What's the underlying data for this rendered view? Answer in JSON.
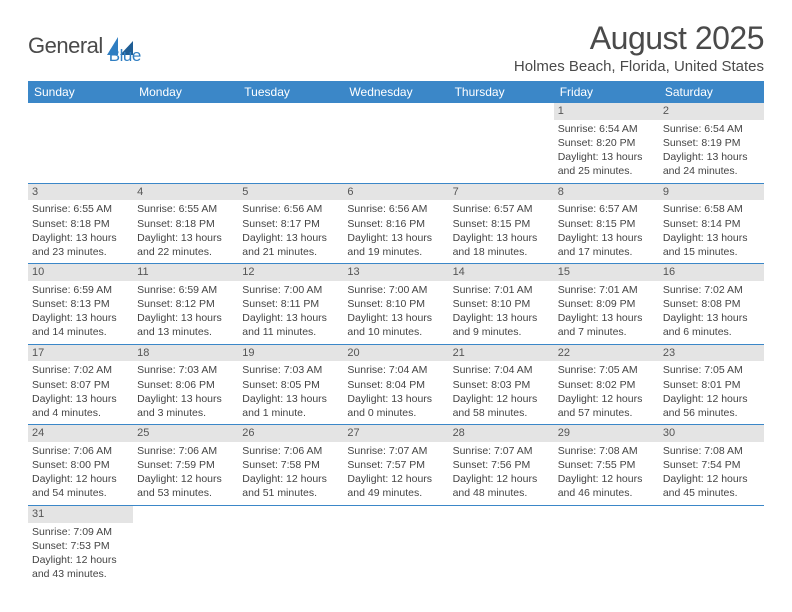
{
  "logo": {
    "text1": "General",
    "text2": "Blue"
  },
  "title": "August 2025",
  "location": "Holmes Beach, Florida, United States",
  "weekdays": [
    "Sunday",
    "Monday",
    "Tuesday",
    "Wednesday",
    "Thursday",
    "Friday",
    "Saturday"
  ],
  "colors": {
    "header_bg": "#3b87c8",
    "header_text": "#ffffff",
    "daynum_bg": "#e4e4e4",
    "border": "#3b87c8",
    "logo_blue": "#2f7ec2",
    "text": "#444444"
  },
  "weeks": [
    [
      null,
      null,
      null,
      null,
      null,
      {
        "n": "1",
        "sr": "6:54 AM",
        "ss": "8:20 PM",
        "dl": "13 hours and 25 minutes."
      },
      {
        "n": "2",
        "sr": "6:54 AM",
        "ss": "8:19 PM",
        "dl": "13 hours and 24 minutes."
      }
    ],
    [
      {
        "n": "3",
        "sr": "6:55 AM",
        "ss": "8:18 PM",
        "dl": "13 hours and 23 minutes."
      },
      {
        "n": "4",
        "sr": "6:55 AM",
        "ss": "8:18 PM",
        "dl": "13 hours and 22 minutes."
      },
      {
        "n": "5",
        "sr": "6:56 AM",
        "ss": "8:17 PM",
        "dl": "13 hours and 21 minutes."
      },
      {
        "n": "6",
        "sr": "6:56 AM",
        "ss": "8:16 PM",
        "dl": "13 hours and 19 minutes."
      },
      {
        "n": "7",
        "sr": "6:57 AM",
        "ss": "8:15 PM",
        "dl": "13 hours and 18 minutes."
      },
      {
        "n": "8",
        "sr": "6:57 AM",
        "ss": "8:15 PM",
        "dl": "13 hours and 17 minutes."
      },
      {
        "n": "9",
        "sr": "6:58 AM",
        "ss": "8:14 PM",
        "dl": "13 hours and 15 minutes."
      }
    ],
    [
      {
        "n": "10",
        "sr": "6:59 AM",
        "ss": "8:13 PM",
        "dl": "13 hours and 14 minutes."
      },
      {
        "n": "11",
        "sr": "6:59 AM",
        "ss": "8:12 PM",
        "dl": "13 hours and 13 minutes."
      },
      {
        "n": "12",
        "sr": "7:00 AM",
        "ss": "8:11 PM",
        "dl": "13 hours and 11 minutes."
      },
      {
        "n": "13",
        "sr": "7:00 AM",
        "ss": "8:10 PM",
        "dl": "13 hours and 10 minutes."
      },
      {
        "n": "14",
        "sr": "7:01 AM",
        "ss": "8:10 PM",
        "dl": "13 hours and 9 minutes."
      },
      {
        "n": "15",
        "sr": "7:01 AM",
        "ss": "8:09 PM",
        "dl": "13 hours and 7 minutes."
      },
      {
        "n": "16",
        "sr": "7:02 AM",
        "ss": "8:08 PM",
        "dl": "13 hours and 6 minutes."
      }
    ],
    [
      {
        "n": "17",
        "sr": "7:02 AM",
        "ss": "8:07 PM",
        "dl": "13 hours and 4 minutes."
      },
      {
        "n": "18",
        "sr": "7:03 AM",
        "ss": "8:06 PM",
        "dl": "13 hours and 3 minutes."
      },
      {
        "n": "19",
        "sr": "7:03 AM",
        "ss": "8:05 PM",
        "dl": "13 hours and 1 minute."
      },
      {
        "n": "20",
        "sr": "7:04 AM",
        "ss": "8:04 PM",
        "dl": "13 hours and 0 minutes."
      },
      {
        "n": "21",
        "sr": "7:04 AM",
        "ss": "8:03 PM",
        "dl": "12 hours and 58 minutes."
      },
      {
        "n": "22",
        "sr": "7:05 AM",
        "ss": "8:02 PM",
        "dl": "12 hours and 57 minutes."
      },
      {
        "n": "23",
        "sr": "7:05 AM",
        "ss": "8:01 PM",
        "dl": "12 hours and 56 minutes."
      }
    ],
    [
      {
        "n": "24",
        "sr": "7:06 AM",
        "ss": "8:00 PM",
        "dl": "12 hours and 54 minutes."
      },
      {
        "n": "25",
        "sr": "7:06 AM",
        "ss": "7:59 PM",
        "dl": "12 hours and 53 minutes."
      },
      {
        "n": "26",
        "sr": "7:06 AM",
        "ss": "7:58 PM",
        "dl": "12 hours and 51 minutes."
      },
      {
        "n": "27",
        "sr": "7:07 AM",
        "ss": "7:57 PM",
        "dl": "12 hours and 49 minutes."
      },
      {
        "n": "28",
        "sr": "7:07 AM",
        "ss": "7:56 PM",
        "dl": "12 hours and 48 minutes."
      },
      {
        "n": "29",
        "sr": "7:08 AM",
        "ss": "7:55 PM",
        "dl": "12 hours and 46 minutes."
      },
      {
        "n": "30",
        "sr": "7:08 AM",
        "ss": "7:54 PM",
        "dl": "12 hours and 45 minutes."
      }
    ],
    [
      {
        "n": "31",
        "sr": "7:09 AM",
        "ss": "7:53 PM",
        "dl": "12 hours and 43 minutes."
      },
      null,
      null,
      null,
      null,
      null,
      null
    ]
  ]
}
